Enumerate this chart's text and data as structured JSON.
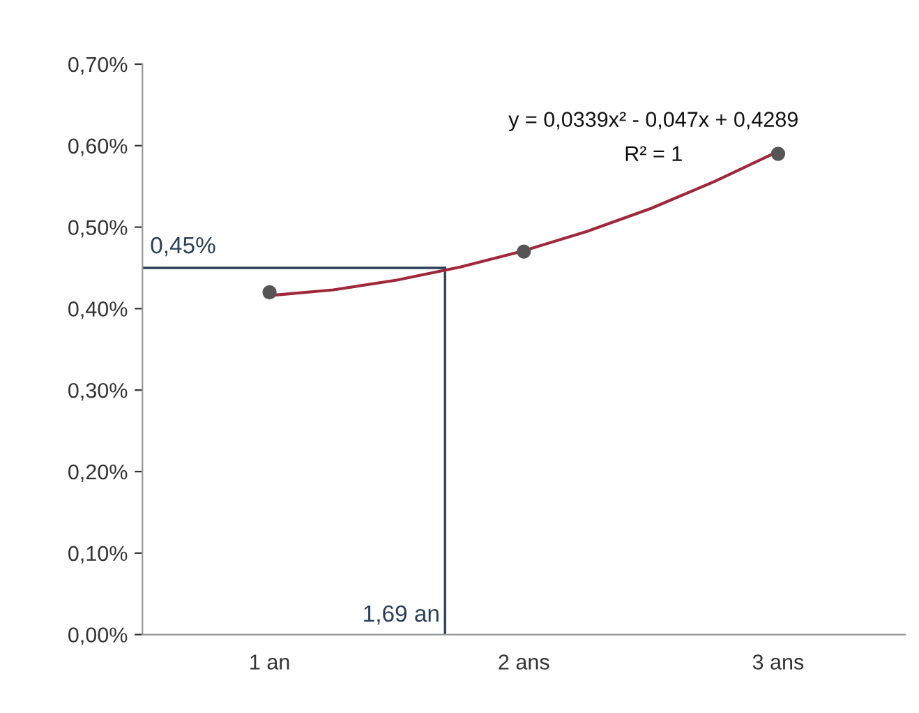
{
  "chart_data": {
    "type": "scatter",
    "xlim": [
      0.5,
      3.5
    ],
    "xticks": [
      {
        "value": 1,
        "label": "1 an"
      },
      {
        "value": 2,
        "label": "2 ans"
      },
      {
        "value": 3,
        "label": "3 ans"
      }
    ],
    "ylim": [
      0,
      0.7
    ],
    "yticks": [
      {
        "value": 0,
        "label": "0,00%"
      },
      {
        "value": 0.1,
        "label": "0,10%"
      },
      {
        "value": 0.2,
        "label": "0,20%"
      },
      {
        "value": 0.3,
        "label": "0,30%"
      },
      {
        "value": 0.4,
        "label": "0,40%"
      },
      {
        "value": 0.5,
        "label": "0,50%"
      },
      {
        "value": 0.6,
        "label": "0,60%"
      },
      {
        "value": 0.7,
        "label": "0,70%"
      }
    ],
    "grid": false,
    "series": [
      {
        "color": "#555555",
        "marker": "circle",
        "x": [
          1,
          2,
          3
        ],
        "values": [
          0.42,
          0.47,
          0.59
        ]
      },
      {
        "type": "line",
        "color": "#a0283c",
        "line_style": "solid",
        "marker": "none",
        "x": [
          1,
          1.25,
          1.5,
          1.75,
          2,
          2.25,
          2.5,
          2.75,
          3
        ],
        "values": [
          0.416,
          0.423,
          0.435,
          0.451,
          0.471,
          0.495,
          0.523,
          0.556,
          0.593
        ]
      }
    ],
    "ref_lines": [
      {
        "axis": "y",
        "value": 0.45,
        "label": "0,45%",
        "color": "#2a3f5a"
      },
      {
        "axis": "x",
        "value": 1.69,
        "label": "1,69 an",
        "color": "#2a3f5a"
      }
    ],
    "annotations": [
      "y = 0,0339x² - 0,047x + 0,4289",
      "R² = 1"
    ]
  }
}
